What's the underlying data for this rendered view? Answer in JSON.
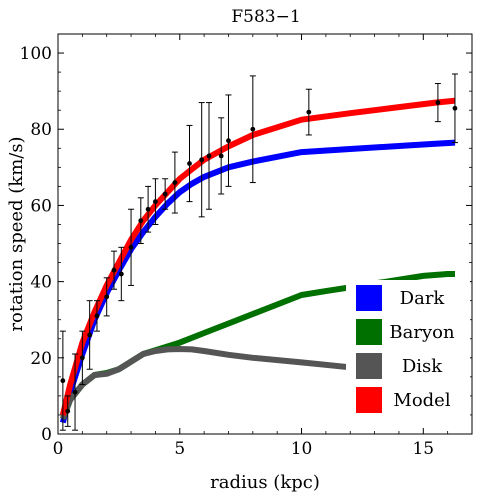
{
  "chart_data": {
    "type": "line",
    "title": "F583−1",
    "xlabel": "radius (kpc)",
    "ylabel": "rotation speed (km/s)",
    "xlim": [
      0,
      17
    ],
    "ylim": [
      0,
      105
    ],
    "x_ticks": [
      0,
      5,
      10,
      15
    ],
    "y_ticks": [
      0,
      20,
      40,
      60,
      80,
      100
    ],
    "grid": false,
    "legend_position": "bottom-right",
    "series": [
      {
        "name": "Dark",
        "color": "#0000ff",
        "x": [
          0.2,
          0.5,
          1.0,
          1.5,
          2.0,
          2.5,
          3.0,
          3.5,
          4.0,
          4.5,
          5.0,
          5.5,
          6.0,
          7.0,
          8.0,
          10.0,
          12.0,
          14.0,
          15.5,
          16.3
        ],
        "y": [
          3,
          11,
          21,
          30,
          37,
          43,
          48.5,
          53,
          57,
          60.5,
          63.5,
          65.7,
          67.5,
          70,
          71.5,
          74,
          74.8,
          75.6,
          76.2,
          76.5
        ]
      },
      {
        "name": "Baryon",
        "color": "#007000",
        "x": [
          0.2,
          0.5,
          1.0,
          1.5,
          2.0,
          2.5,
          3.0,
          3.5,
          4.0,
          5.0,
          6.0,
          7.0,
          8.0,
          9.0,
          10.0,
          11.0,
          12.0,
          13.0,
          14.0,
          15.0,
          16.0,
          16.3
        ],
        "y": [
          4,
          9,
          13,
          15.5,
          16,
          17,
          19,
          21,
          22,
          24,
          26.5,
          29,
          31.5,
          34,
          36.5,
          37.5,
          38.5,
          39.5,
          40.5,
          41.5,
          42,
          42
        ]
      },
      {
        "name": "Disk",
        "color": "#555555",
        "x": [
          0.2,
          0.5,
          1.0,
          1.5,
          2.0,
          2.5,
          3.0,
          3.5,
          4.0,
          4.5,
          5.0,
          5.5,
          6.0,
          7.0,
          8.0,
          10.0,
          12.0,
          14.0,
          15.5,
          16.3
        ],
        "y": [
          4,
          9,
          13,
          15.5,
          15.8,
          17,
          19,
          21,
          21.8,
          22.2,
          22.3,
          22.2,
          21.8,
          20.8,
          20.0,
          18.8,
          17.5,
          16.0,
          15.0,
          14.5
        ]
      },
      {
        "name": "Model",
        "color": "#ff0000",
        "x": [
          0.2,
          0.5,
          1.0,
          1.5,
          2.0,
          2.5,
          3.0,
          3.5,
          4.0,
          4.5,
          5.0,
          5.5,
          6.0,
          7.0,
          8.0,
          10.0,
          12.0,
          14.0,
          15.5,
          16.3
        ],
        "y": [
          5,
          13,
          24,
          32,
          39,
          45,
          51,
          56,
          60,
          63.5,
          67,
          69.5,
          72,
          75.5,
          78.5,
          82.5,
          84.2,
          85.8,
          87,
          87.5
        ]
      }
    ],
    "observations": {
      "x": [
        0.2,
        0.4,
        0.7,
        1.0,
        1.3,
        1.6,
        2.0,
        2.3,
        2.6,
        3.0,
        3.4,
        3.7,
        4.0,
        4.4,
        4.8,
        5.4,
        5.9,
        6.2,
        6.7,
        7.0,
        8.0,
        10.3,
        15.6,
        16.3
      ],
      "y": [
        14,
        6,
        11,
        20,
        26,
        31,
        36,
        43,
        42,
        49,
        56,
        59,
        61,
        63,
        66,
        71,
        72,
        73,
        73,
        77,
        80,
        84.5,
        87,
        85.5
      ],
      "err": [
        13,
        4,
        10,
        7,
        9,
        4,
        5,
        5,
        7,
        10,
        6,
        6,
        6,
        4,
        8,
        10,
        15,
        14,
        10,
        12,
        14,
        6,
        5,
        9
      ]
    }
  }
}
